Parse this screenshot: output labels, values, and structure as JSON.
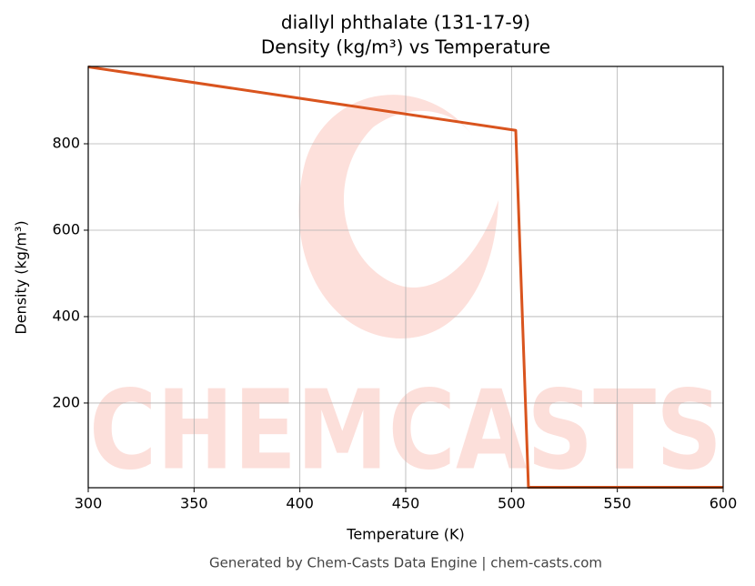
{
  "chart_data": {
    "type": "line",
    "title": "diallyl phthalate (131-17-9)",
    "subtitle": "Density (kg/m³) vs Temperature",
    "x_label": "Temperature (K)",
    "y_label": "Density (kg/m³)",
    "x": [
      300,
      502,
      508,
      600
    ],
    "series": [
      {
        "name": "Density",
        "color": "#d9541e",
        "values": [
          978,
          831,
          5,
          5
        ]
      }
    ],
    "xlim": [
      300,
      600
    ],
    "xticks": [
      300,
      350,
      400,
      450,
      500,
      550,
      600
    ],
    "ylim": [
      4,
      979
    ],
    "yticks": [
      200,
      400,
      600,
      800
    ],
    "grid": true,
    "watermark": "CHEMCASTS",
    "footer": "Generated by Chem-Casts Data Engine | chem-casts.com"
  }
}
